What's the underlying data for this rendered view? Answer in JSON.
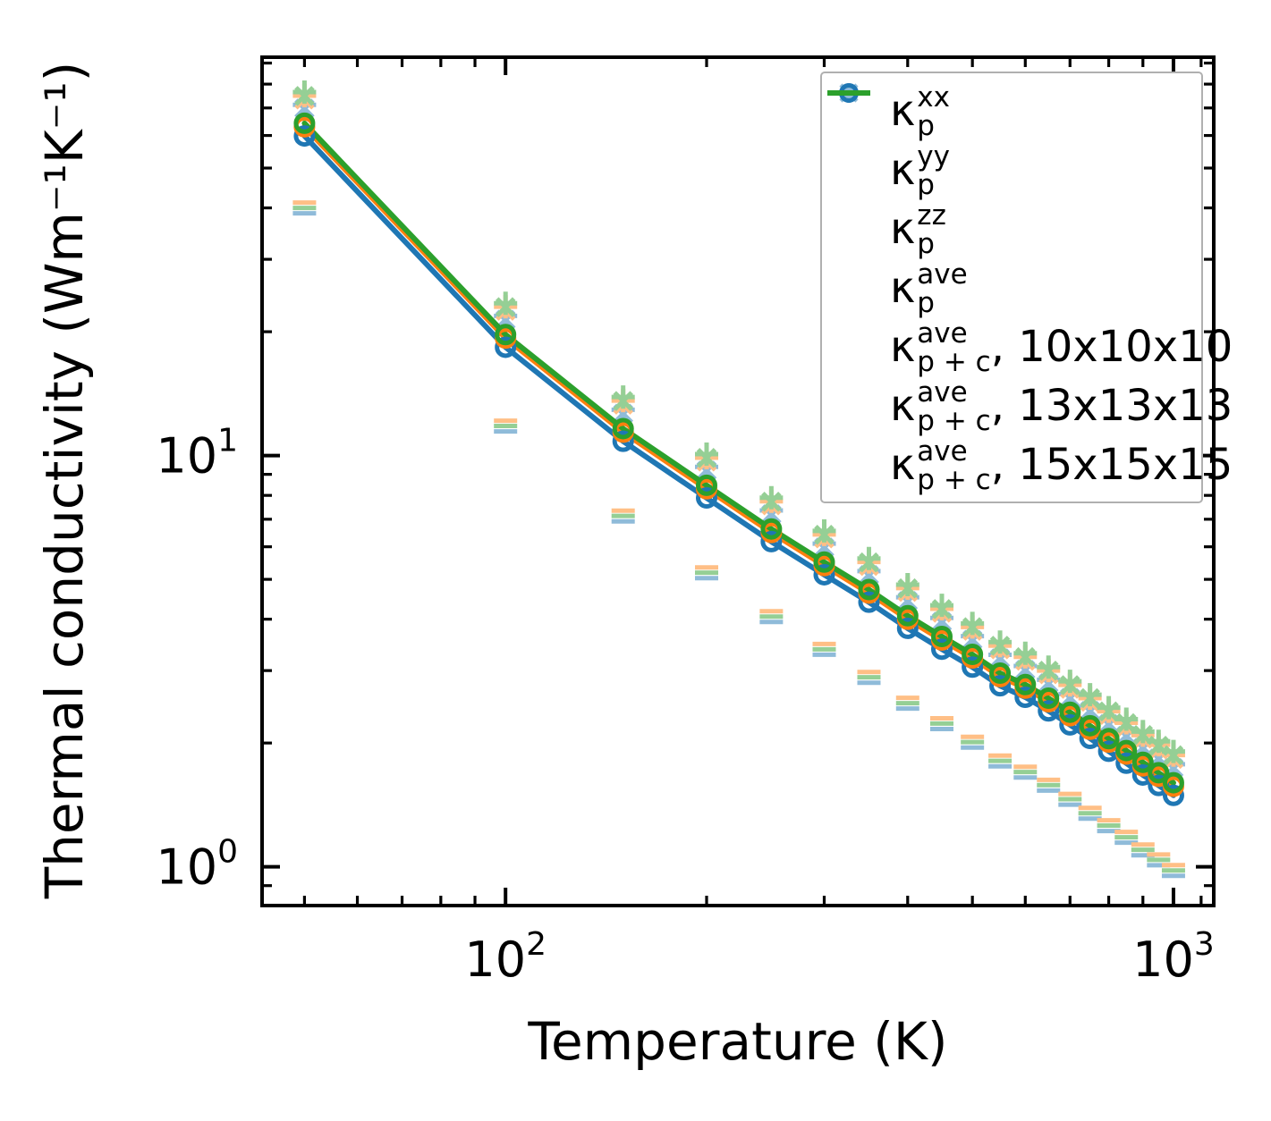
{
  "chart_data": {
    "type": "line",
    "title": "",
    "xlabel": "Temperature (K)",
    "ylabel": "Thermal conductivity (Wm⁻¹K⁻¹)",
    "x_scale": "log",
    "y_scale": "log",
    "xlim": [
      43.2,
      1149
    ],
    "ylim": [
      0.805,
      93
    ],
    "grid": false,
    "legend_position": "upper right",
    "x_major_ticks": [
      {
        "base": "10",
        "exp": "2",
        "value": 100
      },
      {
        "base": "10",
        "exp": "3",
        "value": 1000
      }
    ],
    "x_minor_ticks": [
      50,
      60,
      70,
      80,
      90,
      200,
      300,
      400,
      500,
      600,
      700,
      800,
      900,
      1100
    ],
    "y_major_ticks": [
      {
        "base": "10",
        "exp": "1",
        "value": 10
      },
      {
        "base": "10",
        "exp": "0",
        "value": 1
      }
    ],
    "y_minor_ticks": [
      0.9,
      2,
      3,
      4,
      5,
      6,
      7,
      8,
      9,
      20,
      30,
      40,
      50,
      60,
      70,
      80,
      90
    ],
    "temperatures": [
      50,
      100,
      150,
      200,
      250,
      300,
      350,
      400,
      450,
      500,
      550,
      600,
      650,
      700,
      750,
      800,
      850,
      900,
      950,
      1000
    ],
    "kappa_xx": [
      75.0,
      23.0,
      13.6,
      9.88,
      7.74,
      6.43,
      5.51,
      4.76,
      4.24,
      3.83,
      3.45,
      3.24,
      3.0,
      2.77,
      2.57,
      2.39,
      2.24,
      2.09,
      1.98,
      1.87
    ],
    "kappa_yy": [
      73.4,
      22.5,
      13.3,
      9.67,
      7.57,
      6.29,
      5.39,
      4.66,
      4.15,
      3.75,
      3.38,
      3.17,
      2.94,
      2.71,
      2.52,
      2.34,
      2.19,
      2.05,
      1.93,
      1.83
    ],
    "kappa_zz": [
      40.0,
      11.8,
      7.13,
      5.19,
      4.06,
      3.38,
      2.89,
      2.5,
      2.23,
      2.01,
      1.81,
      1.7,
      1.58,
      1.46,
      1.35,
      1.26,
      1.18,
      1.1,
      1.04,
      0.98
    ],
    "kappa_ave": [
      63.0,
      19.3,
      11.4,
      8.3,
      6.5,
      5.4,
      4.63,
      4.0,
      3.56,
      3.22,
      2.9,
      2.72,
      2.52,
      2.33,
      2.16,
      2.01,
      1.88,
      1.76,
      1.66,
      1.57
    ],
    "meshes": [
      {
        "label": "10x10x10",
        "color": "#1f77b4",
        "light_color": "#8fbbd9",
        "scale": 0.95,
        "zz_scale": 0.97
      },
      {
        "label": "13x13x13",
        "color": "#ff7f0e",
        "light_color": "#ffbf86",
        "scale": 1.0,
        "zz_scale": 1.03
      },
      {
        "label": "15x15x15",
        "color": "#2ca02c",
        "light_color": "#95cf95",
        "scale": 1.02,
        "zz_scale": 1.0
      }
    ]
  },
  "colors": {
    "blue": "#1f77b4",
    "orange": "#ff7f0e",
    "green": "#2ca02c",
    "light_blue": "#8fbbd9",
    "axis": "#000000",
    "legend_border": "#b0b0b0"
  },
  "legend": {
    "items": [
      {
        "handle": "plus-marker",
        "color": "#8fbbd9",
        "symbol": "κ",
        "sup": "xx",
        "sub": "p",
        "suffix": ""
      },
      {
        "handle": "cross-marker",
        "color": "#8fbbd9",
        "symbol": "κ",
        "sup": "yy",
        "sub": "p",
        "suffix": ""
      },
      {
        "handle": "dash-marker",
        "color": "#8fbbd9",
        "symbol": "κ",
        "sup": "zz",
        "sub": "p",
        "suffix": ""
      },
      {
        "handle": "circle-marker",
        "color": "#1f77b4",
        "symbol": "κ",
        "sup": "ave",
        "sub": "p",
        "suffix": ""
      },
      {
        "handle": "line",
        "color": "#1f77b4",
        "symbol": "κ",
        "sup": "ave",
        "sub": "p + c",
        "suffix": ", 10x10x10"
      },
      {
        "handle": "line",
        "color": "#ff7f0e",
        "symbol": "κ",
        "sup": "ave",
        "sub": "p + c",
        "suffix": ", 13x13x13"
      },
      {
        "handle": "line",
        "color": "#2ca02c",
        "symbol": "κ",
        "sup": "ave",
        "sub": "p + c",
        "suffix": ", 15x15x15"
      }
    ]
  }
}
